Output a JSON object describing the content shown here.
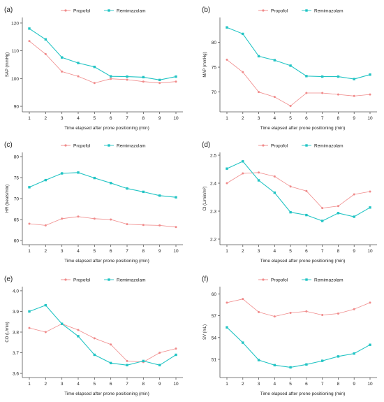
{
  "colors": {
    "propofol": "#f08a8a",
    "remimazolam": "#22c4c4",
    "axis": "#555555",
    "text": "#222222"
  },
  "chart_data": [
    {
      "type": "line",
      "panel": "(a)",
      "xlabel": "Time elapsed after prone positioning (min)",
      "ylabel": "SAP (mmHg)",
      "x": [
        1,
        2,
        3,
        4,
        5,
        6,
        7,
        8,
        9,
        10
      ],
      "ylim": [
        88,
        122
      ],
      "yticks": [
        90,
        100,
        110,
        120
      ],
      "ytick_labels": [
        "90",
        "100",
        "110",
        "120"
      ],
      "legend_position": "top",
      "series": [
        {
          "name": "Propofol",
          "values": [
            113.5,
            108.8,
            102.5,
            100.8,
            98.4,
            99.9,
            99.6,
            98.9,
            98.4,
            98.9
          ]
        },
        {
          "name": "Remimazolam",
          "values": [
            118.0,
            114.1,
            107.6,
            105.6,
            104.2,
            100.8,
            100.7,
            100.5,
            99.5,
            100.7
          ]
        }
      ]
    },
    {
      "type": "line",
      "panel": "(b)",
      "xlabel": "Time elapsed after prone positioning (min)",
      "ylabel": "MAP (mmHg)",
      "x": [
        1,
        2,
        3,
        4,
        5,
        6,
        7,
        8,
        9,
        10
      ],
      "ylim": [
        66,
        85
      ],
      "yticks": [
        70,
        75,
        80
      ],
      "ytick_labels": [
        "70",
        "75",
        "80"
      ],
      "legend_position": "top",
      "series": [
        {
          "name": "Propofol",
          "values": [
            76.5,
            74.0,
            70.0,
            69.0,
            67.2,
            69.8,
            69.8,
            69.5,
            69.2,
            69.5
          ]
        },
        {
          "name": "Remimazolam",
          "values": [
            83.0,
            81.7,
            77.2,
            76.4,
            75.3,
            73.2,
            73.1,
            73.1,
            72.6,
            73.5
          ]
        }
      ]
    },
    {
      "type": "line",
      "panel": "(c)",
      "xlabel": "Time elapsed after prone positioning (min)",
      "ylabel": "HR (beats/min)",
      "x": [
        1,
        2,
        3,
        4,
        5,
        6,
        7,
        8,
        9,
        10
      ],
      "ylim": [
        59,
        81
      ],
      "yticks": [
        60,
        65,
        70,
        75,
        80
      ],
      "ytick_labels": [
        "60",
        "65",
        "70",
        "75",
        "80"
      ],
      "legend_position": "top",
      "series": [
        {
          "name": "Propofol",
          "values": [
            64.0,
            63.6,
            65.2,
            65.7,
            65.2,
            65.0,
            63.9,
            63.7,
            63.6,
            63.2
          ]
        },
        {
          "name": "Remimazolam",
          "values": [
            72.7,
            74.4,
            76.0,
            76.2,
            74.9,
            73.7,
            72.4,
            71.6,
            70.7,
            70.3
          ]
        }
      ]
    },
    {
      "type": "line",
      "panel": "(d)",
      "xlabel": "Time elapsed after prone positioning (min)",
      "ylabel": "CI (L/min/m²)",
      "x": [
        1,
        2,
        3,
        4,
        5,
        6,
        7,
        8,
        9,
        10
      ],
      "ylim": [
        2.18,
        2.51
      ],
      "yticks": [
        2.2,
        2.3,
        2.4,
        2.5
      ],
      "ytick_labels": [
        "2.2",
        "2.3",
        "2.4",
        "2.5"
      ],
      "legend_position": "top",
      "series": [
        {
          "name": "Propofol",
          "values": [
            2.4,
            2.435,
            2.438,
            2.424,
            2.388,
            2.372,
            2.311,
            2.318,
            2.36,
            2.37
          ]
        },
        {
          "name": "Remimazolam",
          "values": [
            2.452,
            2.478,
            2.41,
            2.366,
            2.296,
            2.286,
            2.265,
            2.293,
            2.28,
            2.313
          ]
        }
      ]
    },
    {
      "type": "line",
      "panel": "(e)",
      "xlabel": "Time elapsed after prone positioning (min)",
      "ylabel": "CO (L/min)",
      "x": [
        1,
        2,
        3,
        4,
        5,
        6,
        7,
        8,
        9,
        10
      ],
      "ylim": [
        3.58,
        4.02
      ],
      "yticks": [
        3.6,
        3.7,
        3.8,
        3.9,
        4.0
      ],
      "ytick_labels": [
        "3.6",
        "3.7",
        "3.8",
        "3.9",
        "4.0"
      ],
      "legend_position": "top",
      "series": [
        {
          "name": "Propofol",
          "values": [
            3.82,
            3.8,
            3.84,
            3.81,
            3.77,
            3.74,
            3.66,
            3.655,
            3.7,
            3.72
          ]
        },
        {
          "name": "Remimazolam",
          "values": [
            3.9,
            3.93,
            3.84,
            3.78,
            3.69,
            3.65,
            3.64,
            3.66,
            3.64,
            3.69
          ]
        }
      ]
    },
    {
      "type": "line",
      "panel": "(f)",
      "xlabel": "Time elapsed after prone positioning (min)",
      "ylabel": "SV (mL)",
      "x": [
        1,
        2,
        3,
        4,
        5,
        6,
        7,
        8,
        9,
        10
      ],
      "ylim": [
        48.5,
        61
      ],
      "yticks": [
        51,
        54,
        57,
        60
      ],
      "ytick_labels": [
        "51",
        "54",
        "57",
        "60"
      ],
      "legend_position": "top",
      "series": [
        {
          "name": "Propofol",
          "values": [
            58.8,
            59.3,
            57.5,
            56.9,
            57.4,
            57.6,
            57.1,
            57.3,
            57.9,
            58.8
          ]
        },
        {
          "name": "Remimazolam",
          "values": [
            55.4,
            53.3,
            50.9,
            50.2,
            49.9,
            50.3,
            50.8,
            51.4,
            51.8,
            53.0
          ]
        }
      ]
    }
  ]
}
